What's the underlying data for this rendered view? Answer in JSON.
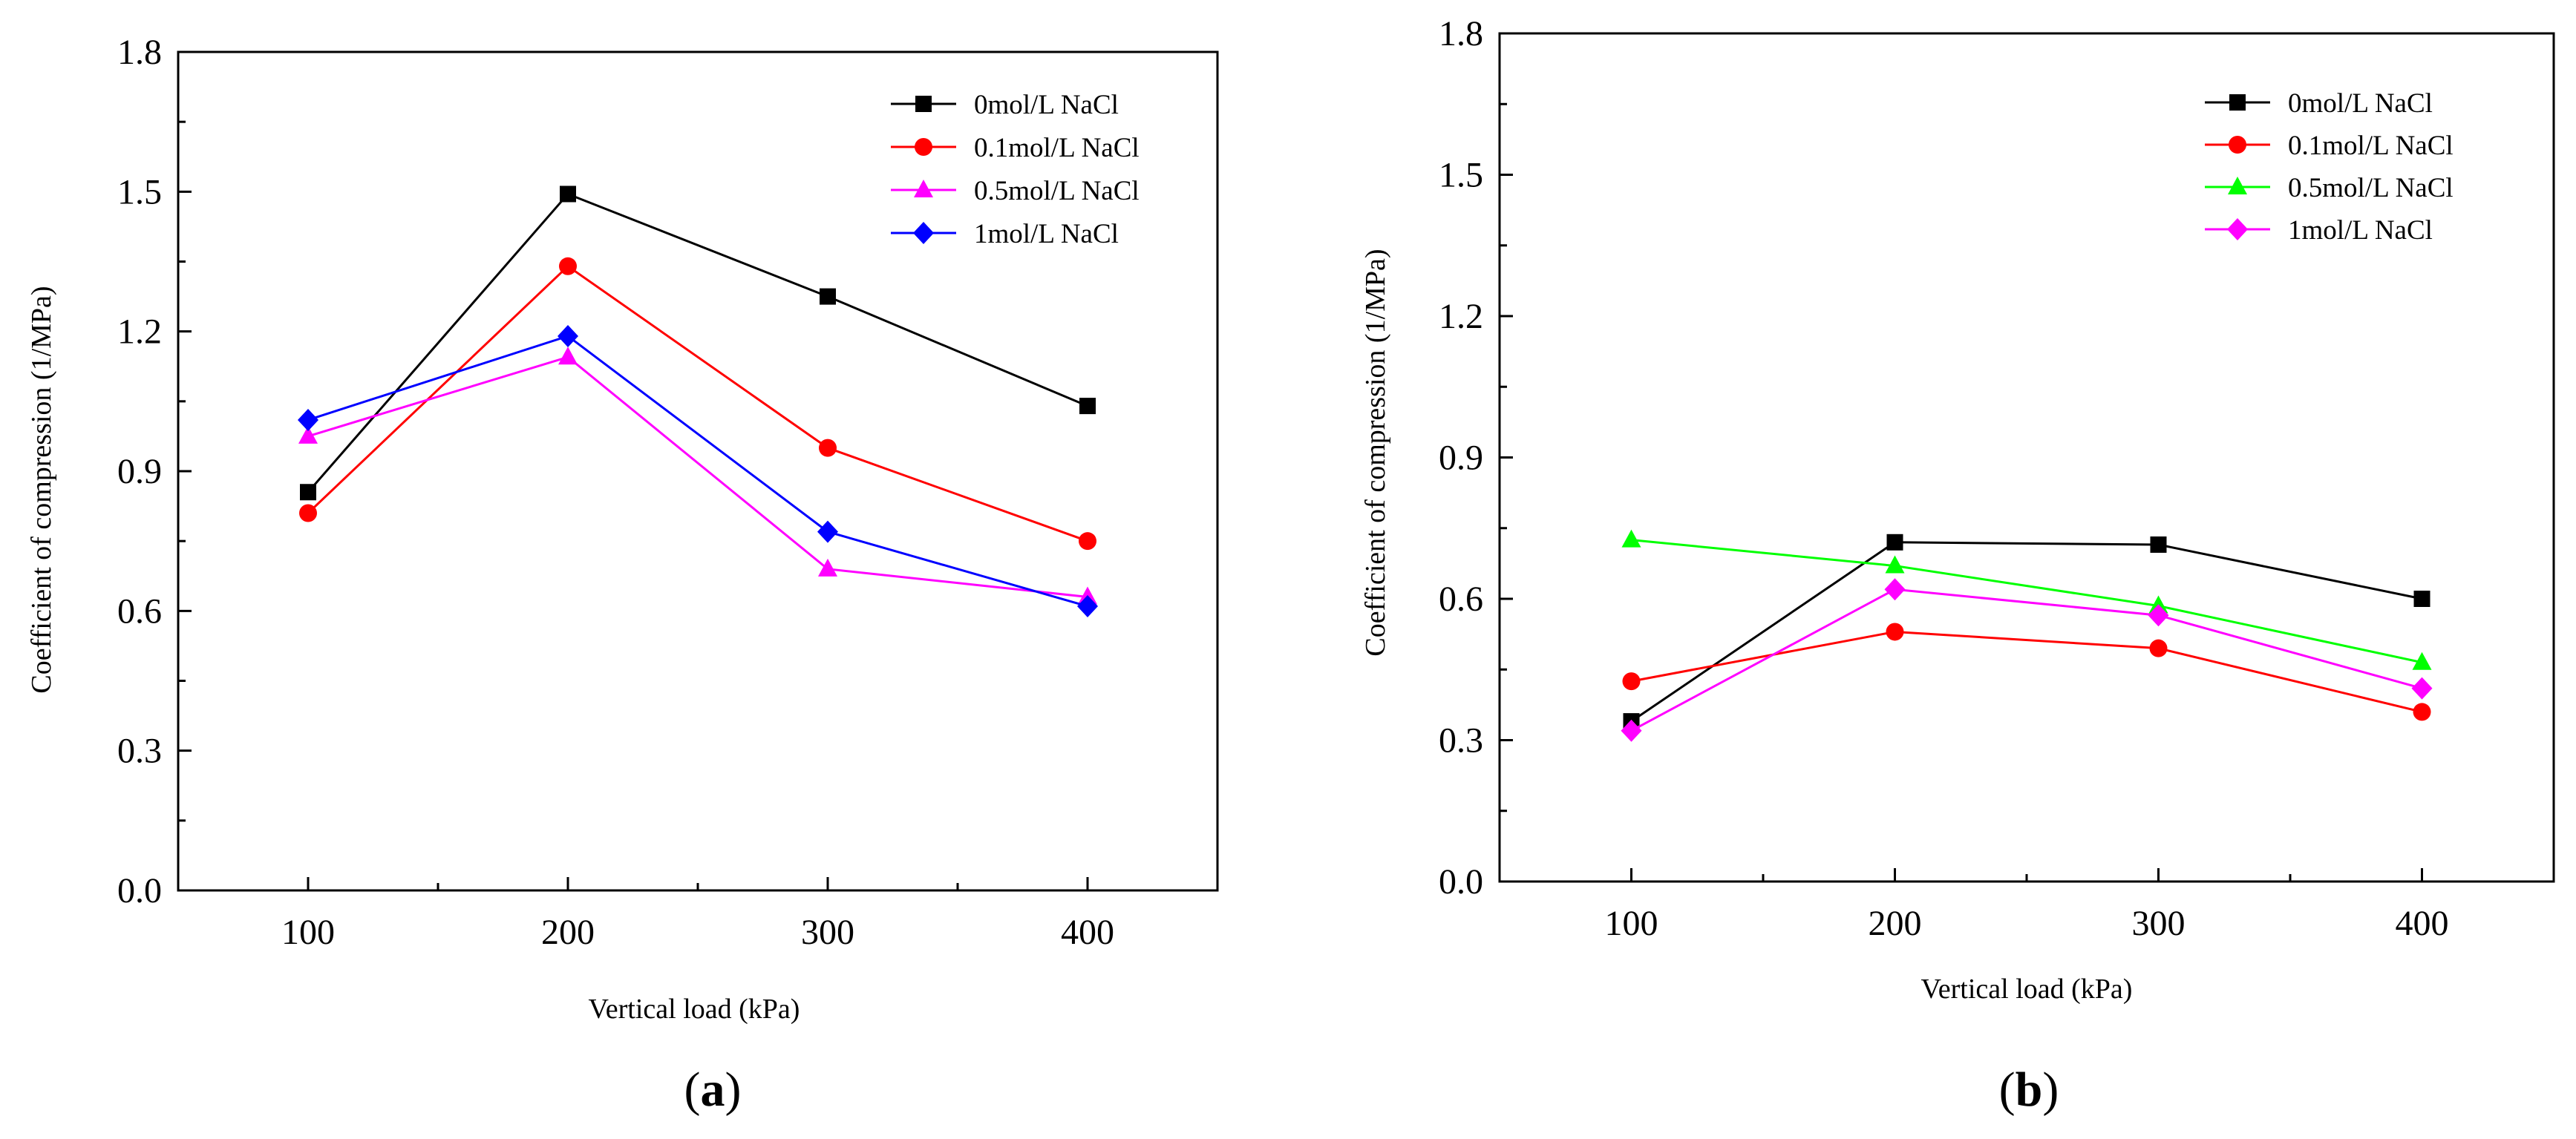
{
  "chart_data": [
    {
      "type": "line",
      "panel": "a",
      "xlabel": "Vertical load (kPa)",
      "ylabel": "Coefficient of compression (1/MPa)",
      "xlim": [
        50,
        450
      ],
      "ylim": [
        0.0,
        1.8
      ],
      "x": [
        100,
        200,
        300,
        400
      ],
      "x_ticks": [
        "100",
        "200",
        "300",
        "400"
      ],
      "y_ticks": [
        "0.0",
        "0.3",
        "0.6",
        "0.9",
        "1.2",
        "1.5",
        "1.8"
      ],
      "legend_position": "top-right",
      "series": [
        {
          "name": "0mol/L NaCl",
          "values": [
            0.855,
            1.495,
            1.275,
            1.04
          ],
          "color": "#000000",
          "marker": "square"
        },
        {
          "name": "0.1mol/L NaCl",
          "values": [
            0.81,
            1.34,
            0.95,
            0.75
          ],
          "color": "#ff0000",
          "marker": "circle"
        },
        {
          "name": "0.5mol/L NaCl",
          "values": [
            0.975,
            1.145,
            0.69,
            0.63
          ],
          "color": "#ff00ff",
          "marker": "triangle"
        },
        {
          "name": "1mol/L NaCl",
          "values": [
            1.01,
            1.19,
            0.77,
            0.61
          ],
          "color": "#0000ff",
          "marker": "diamond"
        }
      ]
    },
    {
      "type": "line",
      "panel": "b",
      "xlabel": "Vertical load (kPa)",
      "ylabel": "Coefficient of compression (1/MPa)",
      "xlim": [
        50,
        450
      ],
      "ylim": [
        0.0,
        1.8
      ],
      "x": [
        100,
        200,
        300,
        400
      ],
      "x_ticks": [
        "100",
        "200",
        "300",
        "400"
      ],
      "y_ticks": [
        "0.0",
        "0.3",
        "0.6",
        "0.9",
        "1.2",
        "1.5",
        "1.8"
      ],
      "legend_position": "top-right",
      "series": [
        {
          "name": "0mol/L NaCl",
          "values": [
            0.34,
            0.72,
            0.715,
            0.6
          ],
          "color": "#000000",
          "marker": "square"
        },
        {
          "name": "0.1mol/L NaCl",
          "values": [
            0.425,
            0.53,
            0.495,
            0.36
          ],
          "color": "#ff0000",
          "marker": "circle"
        },
        {
          "name": "0.5mol/L NaCl",
          "values": [
            0.725,
            0.67,
            0.585,
            0.465
          ],
          "color": "#00ff00",
          "marker": "triangle"
        },
        {
          "name": "1mol/L NaCl",
          "values": [
            0.32,
            0.62,
            0.565,
            0.41
          ],
          "color": "#ff00ff",
          "marker": "diamond"
        }
      ]
    }
  ],
  "captions": [
    {
      "open": "(",
      "letter": "a",
      "close": ")"
    },
    {
      "open": "(",
      "letter": "b",
      "close": ")"
    }
  ]
}
